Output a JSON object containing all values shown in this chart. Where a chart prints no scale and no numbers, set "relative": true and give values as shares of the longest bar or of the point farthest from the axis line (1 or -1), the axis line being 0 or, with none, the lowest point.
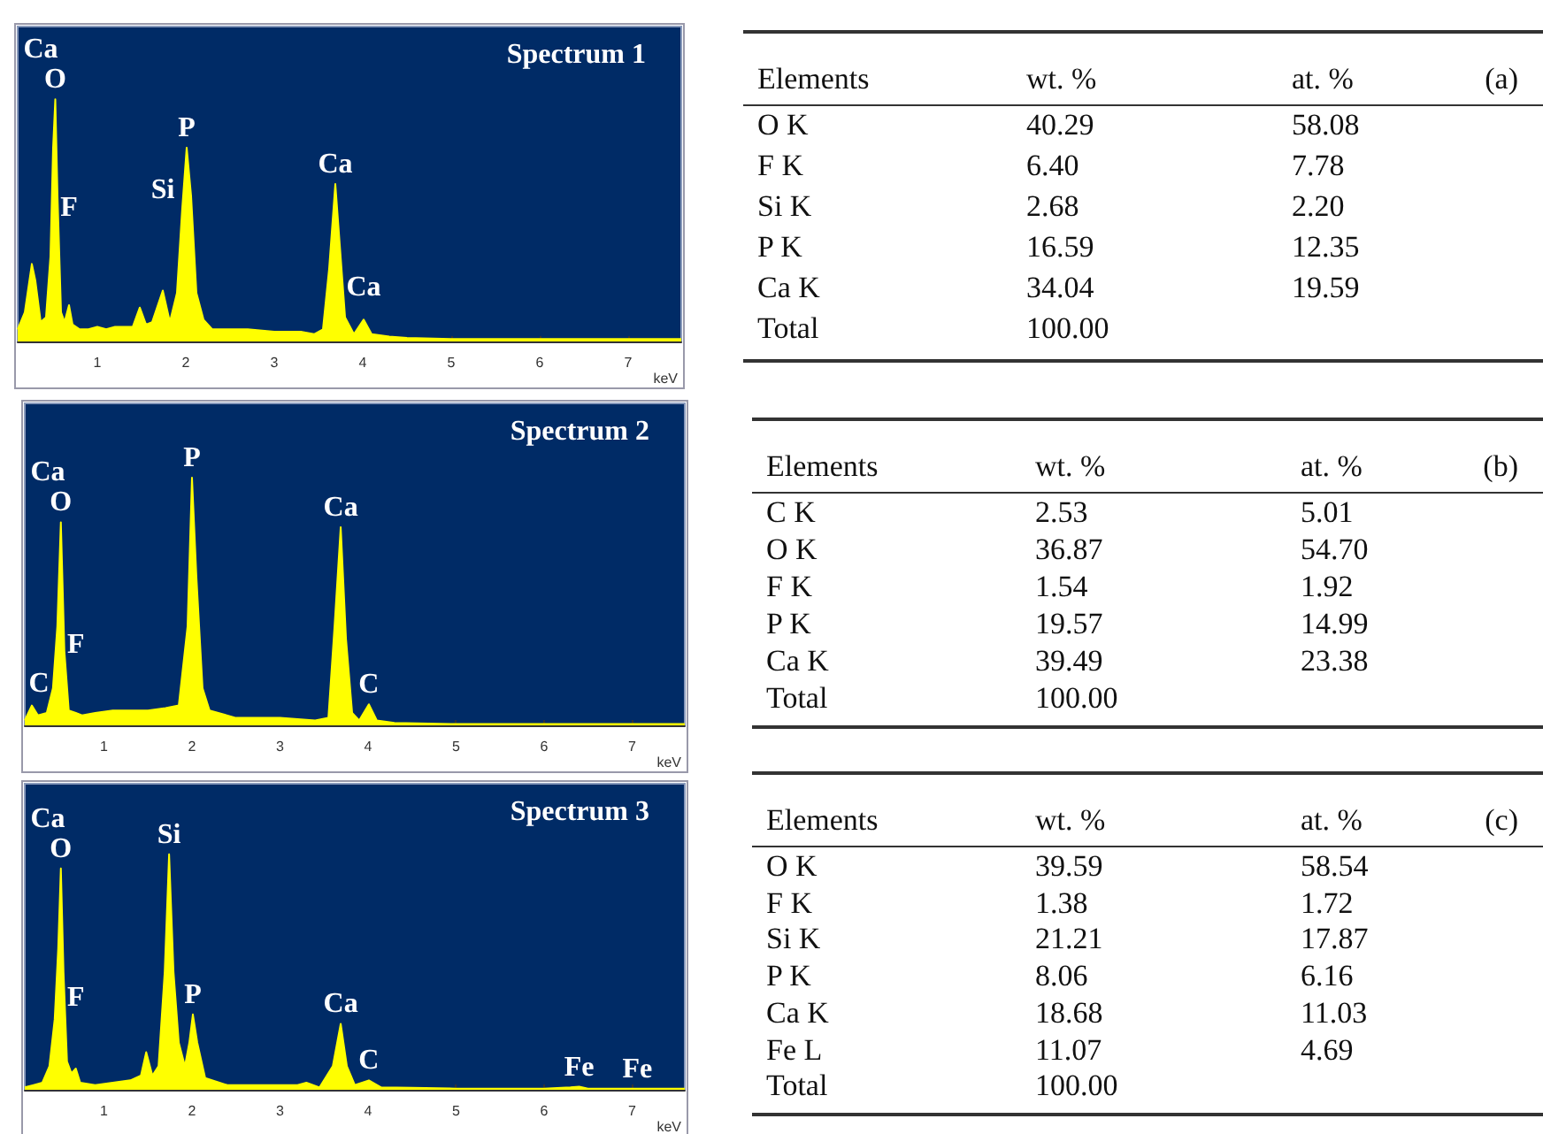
{
  "chart_data": [
    {
      "type": "area",
      "title": "Spectrum 1",
      "xlabel": "keV",
      "relative": true,
      "xlim": [
        0.1,
        7.6
      ],
      "xticks": [
        1,
        2,
        3,
        4,
        5,
        6,
        7
      ],
      "series": [
        {
          "color": "#ffff00",
          "x": [
            0.1,
            0.18,
            0.26,
            0.3,
            0.36,
            0.42,
            0.47,
            0.5,
            0.525,
            0.55,
            0.59,
            0.63,
            0.68,
            0.72,
            0.8,
            0.9,
            1.0,
            1.1,
            1.2,
            1.3,
            1.4,
            1.48,
            1.55,
            1.62,
            1.74,
            1.82,
            1.9,
            1.96,
            2.01,
            2.06,
            2.12,
            2.2,
            2.3,
            2.5,
            2.7,
            3.0,
            3.3,
            3.45,
            3.55,
            3.62,
            3.69,
            3.74,
            3.8,
            3.9,
            4.01,
            4.1,
            4.3,
            4.5,
            5,
            6,
            7,
            7.6
          ],
          "values": [
            0.05,
            0.12,
            0.32,
            0.25,
            0.08,
            0.1,
            0.35,
            0.8,
            1.0,
            0.6,
            0.12,
            0.08,
            0.15,
            0.07,
            0.05,
            0.05,
            0.06,
            0.05,
            0.06,
            0.06,
            0.06,
            0.14,
            0.07,
            0.08,
            0.21,
            0.08,
            0.2,
            0.55,
            0.8,
            0.6,
            0.2,
            0.09,
            0.05,
            0.05,
            0.05,
            0.04,
            0.04,
            0.03,
            0.05,
            0.3,
            0.65,
            0.4,
            0.1,
            0.03,
            0.09,
            0.03,
            0.02,
            0.015,
            0.01,
            0.01,
            0.01,
            0.01
          ]
        }
      ],
      "annotations": [
        {
          "text": "O",
          "x": 0.525,
          "y": 1.0
        },
        "Ca",
        {
          "text": "P",
          "x": 2.01,
          "y": 0.8
        },
        {
          "text": "Si",
          "x": 1.74,
          "y": 0.21
        },
        {
          "text": "F",
          "x": 0.68,
          "y": 0.15
        },
        {
          "text": "Ca",
          "x": 3.69,
          "y": 0.65
        },
        {
          "text": "Ca",
          "x": 4.01,
          "y": 0.09
        }
      ]
    },
    {
      "type": "other",
      "title": "(a)",
      "xlabel": "Elements",
      "categories": [
        "O K",
        "F K",
        "Si K",
        "P K",
        "Ca K",
        "Total"
      ],
      "series": [
        {
          "name": "wt. %",
          "values": [
            40.29,
            6.4,
            2.68,
            16.59,
            34.04,
            100.0
          ],
          "value_labels": [
            "40.29",
            "6.40",
            "2.68",
            "16.59",
            "34.04",
            "100.00"
          ]
        },
        {
          "name": "at. %",
          "values": [
            58.08,
            7.78,
            2.2,
            12.35,
            19.59,
            null
          ],
          "value_labels": [
            "58.08",
            "7.78",
            "2.20",
            "12.35",
            "19.59",
            null
          ]
        }
      ]
    },
    {
      "type": "area",
      "title": "Spectrum 2",
      "xlabel": "keV",
      "relative": true,
      "xlim": [
        0.1,
        7.6
      ],
      "xticks": [
        1,
        2,
        3,
        4,
        5,
        6,
        7
      ],
      "series": [
        {
          "color": "#ffff00",
          "x": [
            0.1,
            0.18,
            0.25,
            0.35,
            0.42,
            0.47,
            0.51,
            0.55,
            0.6,
            0.68,
            0.75,
            0.9,
            1.1,
            1.3,
            1.5,
            1.7,
            1.85,
            1.95,
            2.0,
            2.05,
            2.12,
            2.2,
            2.5,
            3.0,
            3.4,
            3.55,
            3.62,
            3.69,
            3.75,
            3.82,
            3.9,
            4.01,
            4.1,
            4.3,
            5,
            6,
            7,
            7.6
          ],
          "values": [
            0.02,
            0.08,
            0.04,
            0.05,
            0.15,
            0.4,
            0.82,
            0.3,
            0.06,
            0.05,
            0.04,
            0.05,
            0.06,
            0.06,
            0.06,
            0.07,
            0.08,
            0.4,
            1.0,
            0.6,
            0.15,
            0.06,
            0.03,
            0.03,
            0.02,
            0.03,
            0.4,
            0.8,
            0.35,
            0.05,
            0.02,
            0.085,
            0.02,
            0.01,
            0.005,
            0.005,
            0.005,
            0.005
          ]
        }
      ],
      "annotations": [
        {
          "text": "P",
          "x": 2.0,
          "y": 1.0
        },
        {
          "text": "O",
          "x": 0.51,
          "y": 0.82
        },
        {
          "text": "C",
          "x": 0.18,
          "y": 0.08
        },
        "Ca",
        {
          "text": "Ca",
          "x": 3.69,
          "y": 0.8
        },
        {
          "text": "F",
          "x": 0.68,
          "y": 0.05
        },
        {
          "text": "C",
          "x": 4.01,
          "y": 0.085
        }
      ]
    },
    {
      "type": "other",
      "title": "(b)",
      "xlabel": "Elements",
      "categories": [
        "C K",
        "O K",
        "F K",
        "P K",
        "Ca K",
        "Total"
      ],
      "series": [
        {
          "name": "wt. %",
          "values": [
            2.53,
            36.87,
            1.54,
            19.57,
            39.49,
            100.0
          ],
          "value_labels": [
            "2.53",
            "36.87",
            "1.54",
            "19.57",
            "39.49",
            "100.00"
          ]
        },
        {
          "name": "at. %",
          "values": [
            5.01,
            54.7,
            1.92,
            14.99,
            23.38,
            null
          ],
          "value_labels": [
            "5.01",
            "54.70",
            "1.92",
            "14.99",
            "23.38",
            null
          ]
        }
      ]
    },
    {
      "type": "area",
      "title": "Spectrum 3",
      "xlabel": "keV",
      "relative": true,
      "xlim": [
        0.1,
        7.6
      ],
      "xticks": [
        1,
        2,
        3,
        4,
        5,
        6,
        7
      ],
      "series": [
        {
          "color": "#ffff00",
          "x": [
            0.1,
            0.2,
            0.3,
            0.38,
            0.44,
            0.48,
            0.51,
            0.54,
            0.58,
            0.63,
            0.68,
            0.73,
            0.9,
            1.1,
            1.3,
            1.42,
            1.48,
            1.55,
            1.62,
            1.69,
            1.74,
            1.79,
            1.85,
            1.92,
            1.97,
            2.01,
            2.06,
            2.15,
            2.4,
            2.8,
            3.2,
            3.3,
            3.45,
            3.6,
            3.69,
            3.76,
            3.85,
            4.01,
            4.15,
            4.5,
            5,
            6,
            6.3,
            6.4,
            6.5,
            7.06,
            7.6
          ],
          "values": [
            0.01,
            0.02,
            0.03,
            0.1,
            0.3,
            0.6,
            0.94,
            0.5,
            0.12,
            0.07,
            0.09,
            0.03,
            0.02,
            0.03,
            0.04,
            0.06,
            0.16,
            0.06,
            0.1,
            0.5,
            1.0,
            0.5,
            0.2,
            0.1,
            0.2,
            0.32,
            0.2,
            0.05,
            0.02,
            0.02,
            0.02,
            0.03,
            0.01,
            0.1,
            0.28,
            0.1,
            0.02,
            0.04,
            0.01,
            0.008,
            0.005,
            0.005,
            0.01,
            0.013,
            0.005,
            0.005,
            0.005
          ]
        }
      ],
      "annotations": [
        {
          "text": "O",
          "x": 0.51,
          "y": 0.94
        },
        {
          "text": "Si",
          "x": 1.74,
          "y": 1.0
        },
        "Ca",
        {
          "text": "P",
          "x": 2.01,
          "y": 0.32
        },
        {
          "text": "Ca",
          "x": 3.69,
          "y": 0.28
        },
        {
          "text": "F",
          "x": 0.68,
          "y": 0.09
        },
        {
          "text": "C",
          "x": 4.01,
          "y": 0.04
        },
        {
          "text": "Fe",
          "x": 6.4,
          "y": 0.013
        },
        {
          "text": "Fe",
          "x": 7.06,
          "y": 0.005
        }
      ]
    },
    {
      "type": "other",
      "title": "(c)",
      "xlabel": "Elements",
      "categories": [
        "O K",
        "F K",
        "Si K",
        "P K",
        "Ca K",
        "Fe L",
        "Total"
      ],
      "series": [
        {
          "name": "wt. %",
          "values": [
            39.59,
            1.38,
            21.21,
            8.06,
            18.68,
            11.07,
            100.0
          ],
          "value_labels": [
            "39.59",
            "1.38",
            "21.21",
            "8.06",
            "18.68",
            "11.07",
            "100.00"
          ]
        },
        {
          "name": "at. %",
          "values": [
            58.54,
            1.72,
            17.87,
            6.16,
            11.03,
            4.69,
            null
          ],
          "value_labels": [
            "58.54",
            "1.72",
            "17.87",
            "6.16",
            "11.03",
            "4.69",
            null
          ]
        }
      ]
    }
  ]
}
